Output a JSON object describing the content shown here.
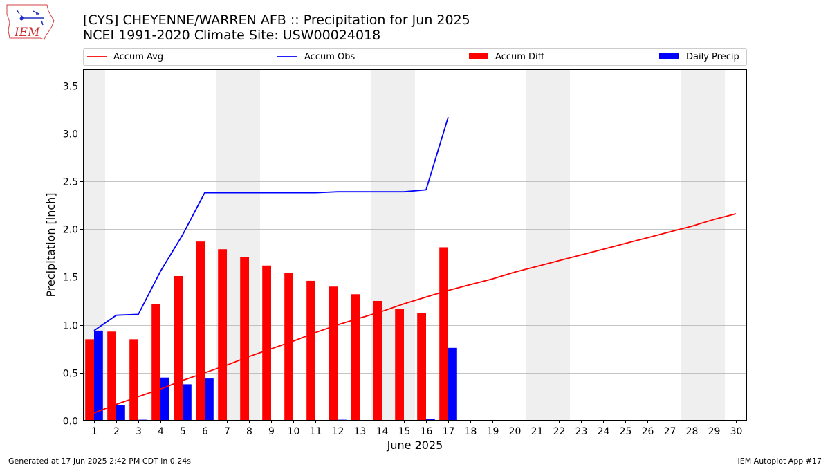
{
  "header": {
    "logo_text": "IEM",
    "title_line1": "[CYS] CHEYENNE/WARREN AFB :: Precipitation for Jun 2025",
    "title_line2": "NCEI 1991-2020 Climate Site: USW00024018"
  },
  "footer": {
    "generated": "Generated at 17 Jun 2025 2:42 PM CDT in 0.24s",
    "app": "IEM Autoplot App #17"
  },
  "colors": {
    "avg": "#ff0000",
    "obs": "#0000ff",
    "diff": "#ff0000",
    "daily": "#0000ff",
    "weekend_shade": "#efefef",
    "grid": "#b0b0b0"
  },
  "chart_data": {
    "type": "bar",
    "xlabel": "June 2025",
    "ylabel": "Precipitation [inch]",
    "xlim": [
      0.5,
      30.5
    ],
    "ylim": [
      0,
      3.67
    ],
    "yticks": [
      0.0,
      0.5,
      1.0,
      1.5,
      2.0,
      2.5,
      3.0,
      3.5
    ],
    "ytick_labels": [
      "0.0",
      "0.5",
      "1.0",
      "1.5",
      "2.0",
      "2.5",
      "3.0",
      "3.5"
    ],
    "grid": "horizontal",
    "legend_placement": "top",
    "days": [
      1,
      2,
      3,
      4,
      5,
      6,
      7,
      8,
      9,
      10,
      11,
      12,
      13,
      14,
      15,
      16,
      17,
      18,
      19,
      20,
      21,
      22,
      23,
      24,
      25,
      26,
      27,
      28,
      29,
      30
    ],
    "day_labels": [
      "1",
      "2",
      "3",
      "4",
      "5",
      "6",
      "7",
      "8",
      "9",
      "10",
      "11",
      "12",
      "13",
      "14",
      "15",
      "16",
      "17",
      "18",
      "19",
      "20",
      "21",
      "22",
      "23",
      "24",
      "25",
      "26",
      "27",
      "28",
      "29",
      "30"
    ],
    "weekend_days": [
      1,
      7,
      8,
      14,
      15,
      21,
      22,
      28,
      29
    ],
    "series": [
      {
        "name": "Accum Avg",
        "kind": "line",
        "values": [
          0.08,
          0.17,
          0.25,
          0.33,
          0.42,
          0.5,
          0.58,
          0.67,
          0.75,
          0.83,
          0.92,
          1.0,
          1.07,
          1.14,
          1.22,
          1.29,
          1.36,
          1.42,
          1.48,
          1.55,
          1.61,
          1.67,
          1.73,
          1.79,
          1.85,
          1.91,
          1.97,
          2.03,
          2.1,
          2.16
        ]
      },
      {
        "name": "Accum Obs",
        "kind": "line",
        "values": [
          0.94,
          1.1,
          1.11,
          1.56,
          1.94,
          2.38,
          2.38,
          2.38,
          2.38,
          2.38,
          2.38,
          2.39,
          2.39,
          2.39,
          2.39,
          2.41,
          3.17
        ]
      },
      {
        "name": "Accum Diff",
        "kind": "bar",
        "values": [
          0.85,
          0.93,
          0.85,
          1.22,
          1.51,
          1.87,
          1.79,
          1.71,
          1.62,
          1.54,
          1.46,
          1.4,
          1.32,
          1.25,
          1.17,
          1.12,
          1.81
        ]
      },
      {
        "name": "Daily Precip",
        "kind": "bar",
        "values": [
          0.94,
          0.16,
          0.01,
          0.45,
          0.38,
          0.44,
          0.0,
          0.0,
          0.0,
          0.005,
          0.005,
          0.01,
          0.005,
          0.005,
          0.0,
          0.02,
          0.76
        ]
      }
    ]
  }
}
